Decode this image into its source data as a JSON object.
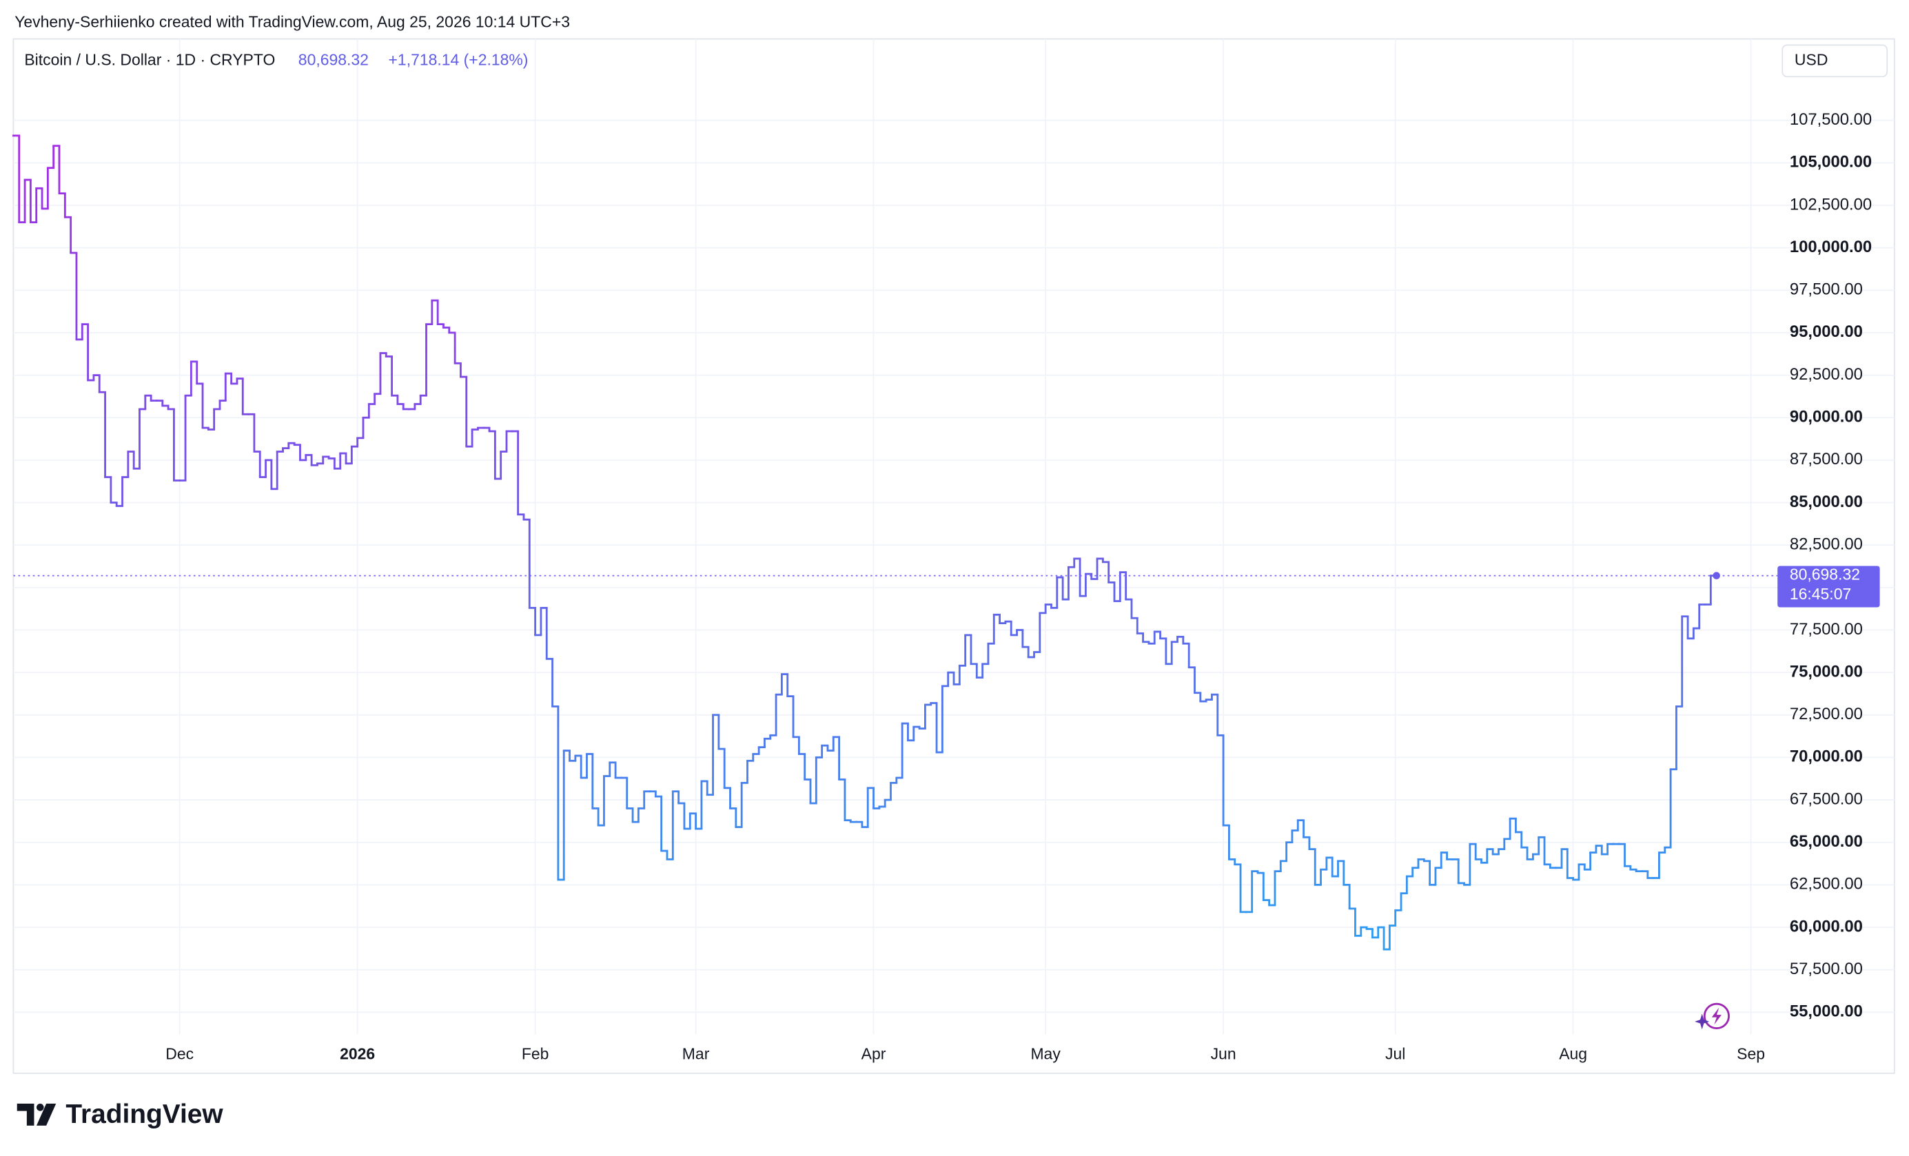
{
  "header": {
    "attribution": "Yevheny-Serhiienko created with TradingView.com, Aug 25, 2026 10:14 UTC+3"
  },
  "footer": {
    "logo": "TradingView"
  },
  "chart_data": {
    "type": "step",
    "title": "Bitcoin / U.S. Dollar · 1D · CRYPTO",
    "last_value_label": "80,698.32",
    "change_label": "+1,718.14 (+2.18%)",
    "countdown": "16:45:07",
    "currency": "USD",
    "line_colors": [
      "#a52be6",
      "#6a5ce8",
      "#2a9ff2"
    ],
    "categories": [
      null,
      null,
      null,
      null,
      null,
      null,
      null,
      null,
      null,
      null,
      null,
      null,
      null,
      null,
      null,
      null,
      null,
      null,
      null,
      null,
      null,
      null,
      null,
      null,
      null,
      null,
      null,
      null,
      null,
      "Dec",
      null,
      null,
      null,
      null,
      null,
      null,
      null,
      null,
      null,
      null,
      null,
      null,
      null,
      null,
      null,
      null,
      null,
      null,
      null,
      null,
      null,
      null,
      null,
      null,
      null,
      null,
      null,
      null,
      null,
      null,
      "2026",
      null,
      null,
      null,
      null,
      null,
      null,
      null,
      null,
      null,
      null,
      null,
      null,
      null,
      null,
      null,
      null,
      null,
      null,
      null,
      null,
      null,
      null,
      null,
      null,
      null,
      null,
      null,
      null,
      null,
      null,
      "Feb",
      null,
      null,
      null,
      null,
      null,
      null,
      null,
      null,
      null,
      null,
      null,
      null,
      null,
      null,
      null,
      null,
      null,
      null,
      null,
      null,
      null,
      null,
      null,
      null,
      null,
      null,
      null,
      "Mar",
      null,
      null,
      null,
      null,
      null,
      null,
      null,
      null,
      null,
      null,
      null,
      null,
      null,
      null,
      null,
      null,
      null,
      null,
      null,
      null,
      null,
      null,
      null,
      null,
      null,
      null,
      null,
      null,
      null,
      null,
      "Apr",
      null,
      null,
      null,
      null,
      null,
      null,
      null,
      null,
      null,
      null,
      null,
      null,
      null,
      null,
      null,
      null,
      null,
      null,
      null,
      null,
      null,
      null,
      null,
      null,
      null,
      null,
      null,
      null,
      null,
      "May",
      null,
      null,
      null,
      null,
      null,
      null,
      null,
      null,
      null,
      null,
      null,
      null,
      null,
      null,
      null,
      null,
      null,
      null,
      null,
      null,
      null,
      null,
      null,
      null,
      null,
      null,
      null,
      null,
      null,
      null,
      "Jun",
      null,
      null,
      null,
      null,
      null,
      null,
      null,
      null,
      null,
      null,
      null,
      null,
      null,
      null,
      null,
      null,
      null,
      null,
      null,
      null,
      null,
      null,
      null,
      null,
      null,
      null,
      null,
      null,
      null,
      "Jul",
      null,
      null,
      null,
      null,
      null,
      null,
      null,
      null,
      null,
      null,
      null,
      null,
      null,
      null,
      null,
      null,
      null,
      null,
      null,
      null,
      null,
      null,
      null,
      null,
      null,
      null,
      null,
      null,
      null,
      null,
      "Aug",
      null,
      null,
      null,
      null,
      null,
      null,
      null,
      null,
      null,
      null,
      null,
      null,
      null,
      null,
      null,
      null,
      null,
      null,
      null,
      null,
      null,
      null,
      null,
      null
    ],
    "extra_categories": [
      null,
      null,
      null,
      null,
      null,
      null,
      "Sep"
    ],
    "values": [
      106600,
      101500,
      104000,
      101500,
      103500,
      102300,
      104700,
      106000,
      103200,
      101800,
      99700,
      94600,
      95500,
      92200,
      92500,
      91500,
      86500,
      85000,
      84800,
      86500,
      88000,
      87000,
      90500,
      91300,
      91000,
      91000,
      90700,
      90500,
      86300,
      86300,
      91300,
      93300,
      92000,
      89400,
      89300,
      90500,
      91000,
      92600,
      92000,
      92300,
      90200,
      90200,
      88000,
      86500,
      87500,
      85800,
      88000,
      88200,
      88500,
      88400,
      87500,
      87800,
      87200,
      87300,
      87700,
      87600,
      87000,
      87900,
      87300,
      88300,
      88800,
      90000,
      90800,
      91400,
      93800,
      93600,
      91300,
      90800,
      90500,
      90500,
      90800,
      91300,
      95500,
      96900,
      95500,
      95300,
      95000,
      93200,
      92400,
      88300,
      89300,
      89400,
      89400,
      89200,
      86400,
      88000,
      89200,
      89200,
      84300,
      84000,
      78800,
      77200,
      78800,
      75800,
      73000,
      62800,
      70400,
      69800,
      70100,
      68800,
      70200,
      67000,
      66000,
      68900,
      69700,
      68800,
      68800,
      67000,
      66200,
      67000,
      68000,
      68000,
      67700,
      64500,
      64000,
      68000,
      67300,
      65800,
      66700,
      65800,
      68600,
      67800,
      72500,
      70500,
      68200,
      67000,
      65900,
      68500,
      69800,
      70200,
      70600,
      71100,
      71300,
      73700,
      74900,
      73600,
      71200,
      70200,
      68700,
      67300,
      70000,
      70700,
      70400,
      71200,
      68700,
      66300,
      66200,
      66200,
      65900,
      68200,
      67000,
      67100,
      67500,
      68500,
      68800,
      72000,
      71000,
      71800,
      71700,
      73100,
      73200,
      70300,
      74200,
      75000,
      74300,
      75400,
      77200,
      75500,
      74700,
      75500,
      76700,
      78400,
      77900,
      78000,
      77200,
      77500,
      76500,
      75900,
      76200,
      78500,
      79000,
      78800,
      80600,
      79300,
      81200,
      81700,
      79500,
      80800,
      80500,
      81700,
      81500,
      80300,
      79200,
      80900,
      79300,
      78200,
      77300,
      76800,
      76700,
      77400,
      77000,
      75500,
      76800,
      77100,
      76700,
      75300,
      73800,
      73300,
      73400,
      73700,
      71300,
      66000,
      64000,
      63700,
      60900,
      60900,
      63300,
      63200,
      61600,
      61300,
      63300,
      63900,
      65000,
      65700,
      66300,
      65300,
      64600,
      62500,
      63400,
      64100,
      63000,
      63900,
      62500,
      61100,
      59500,
      60000,
      59900,
      59400,
      60000,
      58700,
      60100,
      61000,
      62000,
      63000,
      63500,
      64000,
      63900,
      62500,
      63500,
      64400,
      64000,
      64000,
      62600,
      62500,
      64900,
      64000,
      63800,
      64600,
      64300,
      64600,
      65200,
      66400,
      65600,
      64700,
      64000,
      64300,
      65300,
      63700,
      63500,
      63500,
      64600,
      62900,
      62800,
      63700,
      63400,
      64400,
      64800,
      64300,
      64900,
      64900,
      64900,
      63600,
      63400,
      63300,
      63300,
      62900,
      62900,
      64400,
      64700,
      69300,
      73000,
      78300,
      77000,
      77600,
      79000,
      79000,
      80698.32
    ],
    "ylim": [
      53700,
      110000
    ],
    "yticks": [
      {
        "value": 55000,
        "label": "55,000.00"
      },
      {
        "value": 57500,
        "label": "57,500.00"
      },
      {
        "value": 60000,
        "label": "60,000.00"
      },
      {
        "value": 62500,
        "label": "62,500.00"
      },
      {
        "value": 65000,
        "label": "65,000.00"
      },
      {
        "value": 67500,
        "label": "67,500.00"
      },
      {
        "value": 70000,
        "label": "70,000.00"
      },
      {
        "value": 72500,
        "label": "72,500.00"
      },
      {
        "value": 75000,
        "label": "75,000.00"
      },
      {
        "value": 77500,
        "label": "77,500.00"
      },
      {
        "value": 80000,
        "label": "80,000.00"
      },
      {
        "value": 82500,
        "label": "82,500.00"
      },
      {
        "value": 85000,
        "label": "85,000.00"
      },
      {
        "value": 87500,
        "label": "87,500.00"
      },
      {
        "value": 90000,
        "label": "90,000.00"
      },
      {
        "value": 92500,
        "label": "92,500.00"
      },
      {
        "value": 95000,
        "label": "95,000.00"
      },
      {
        "value": 97500,
        "label": "97,500.00"
      },
      {
        "value": 100000,
        "label": "100,000.00"
      },
      {
        "value": 102500,
        "label": "102,500.00"
      },
      {
        "value": 105000,
        "label": "105,000.00"
      },
      {
        "value": 107500,
        "label": "107,500.00"
      }
    ],
    "grid": true
  }
}
